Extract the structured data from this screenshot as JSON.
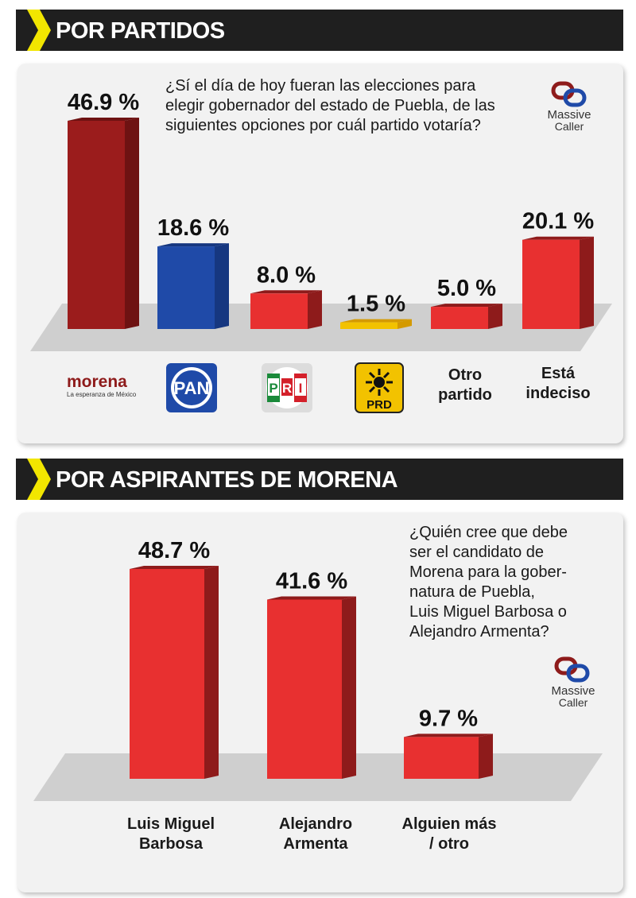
{
  "sections": [
    {
      "header": "POR PARTIDOS",
      "question": "¿Sí el día de hoy fueran las elecciones para elegir gobernador del estado de Puebla, de las siguientes opciones por cuál partido votaría?",
      "question_lines": [
        "¿Sí el día de hoy fueran las elecciones para",
        "elegir gobernador del estado de Puebla, de las",
        "siguientes opciones por cuál partido votaría?"
      ],
      "brand": {
        "line1": "Massive",
        "line2": "Caller"
      },
      "labels": {
        "morena_word": "morena",
        "morena_tagline": "La esperanza de México",
        "pan": "PAN",
        "pri_letters": [
          "P",
          "R",
          "I"
        ],
        "prd": "PRD",
        "otro": [
          "Otro",
          "partido"
        ],
        "indeciso": [
          "Está",
          "indeciso"
        ]
      }
    },
    {
      "header": "POR ASPIRANTES DE MORENA",
      "question_lines": [
        "¿Quién cree que debe",
        "ser el candidato de",
        "Morena para la gober-",
        "natura de Puebla,",
        "Luis Miguel Barbosa o",
        "Alejandro Armenta?"
      ],
      "brand": {
        "line1": "Massive",
        "line2": "Caller"
      },
      "labels": [
        [
          "Luis Miguel",
          "Barbosa"
        ],
        [
          "Alejandro",
          "Armenta"
        ],
        [
          "Alguien más",
          "/ otro"
        ]
      ]
    }
  ],
  "chart_data": [
    {
      "type": "bar",
      "categories": [
        "morena",
        "PAN",
        "PRI",
        "PRD",
        "Otro partido",
        "Está indeciso"
      ],
      "values": [
        46.9,
        18.6,
        8.0,
        1.5,
        5.0,
        20.1
      ],
      "value_labels": [
        "46.9 %",
        "18.6 %",
        "8.0 %",
        "1.5 %",
        "5.0 %",
        "20.1 %"
      ],
      "colors": [
        "#9b1c1c",
        "#1f4aa8",
        "#e83030",
        "#f2c200",
        "#e83030",
        "#e83030"
      ],
      "side_colors": [
        "#6e1212",
        "#163780",
        "#8e1b1b",
        "#d49a00",
        "#8e1b1b",
        "#8e1b1b"
      ],
      "ylim": [
        0,
        46.9
      ]
    },
    {
      "type": "bar",
      "categories": [
        "Luis Miguel Barbosa",
        "Alejandro Armenta",
        "Alguien más / otro"
      ],
      "values": [
        48.7,
        41.6,
        9.7
      ],
      "value_labels": [
        "48.7 %",
        "41.6 %",
        "9.7 %"
      ],
      "colors": [
        "#e83030",
        "#e83030",
        "#e83030"
      ],
      "side_colors": [
        "#8e1b1b",
        "#8e1b1b",
        "#8e1b1b"
      ],
      "ylim": [
        0,
        48.7
      ]
    }
  ],
  "colors": {
    "header_bg": "#1f1f1f",
    "chevron": "#f2e600",
    "panel_bg": "#f2f2f2",
    "floor": "#cfcfcf"
  },
  "icons": [
    "chevron-right-icon",
    "massive-caller-logo",
    "morena-logo",
    "pan-logo",
    "pri-logo",
    "prd-logo"
  ]
}
